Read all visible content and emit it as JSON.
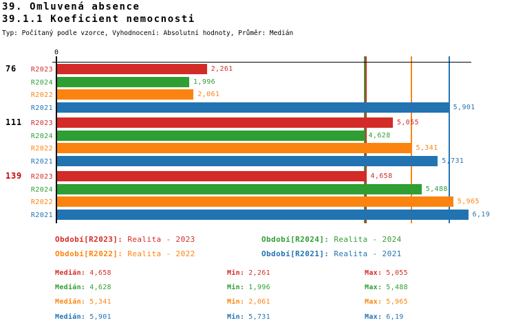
{
  "header": {
    "title_line1": "39. Omluvená absence",
    "title_line2": "39.1.1 Koeficient nemocnosti",
    "subtitle": "Typ: Počítaný podle vzorce, Vyhodnocení: Absolutní hodnoty, Průměr: Medián"
  },
  "palette": {
    "R2023": "#d32b28",
    "R2024": "#2f9e33",
    "R2022": "#fb8410",
    "R2021": "#2273b2",
    "alert_red": "#cc0000",
    "axis_black": "#000000"
  },
  "chart_data": {
    "type": "bar",
    "orientation": "horizontal",
    "grid": "off",
    "x_axis": {
      "zero_label": "0",
      "min": 0,
      "max": 6.3
    },
    "series": [
      {
        "id": "R2023",
        "label": "R2023"
      },
      {
        "id": "R2024",
        "label": "R2024"
      },
      {
        "id": "R2022",
        "label": "R2022"
      },
      {
        "id": "R2021",
        "label": "R2021"
      }
    ],
    "groups": [
      {
        "label": "76",
        "label_color": "black",
        "bars": [
          {
            "series": "R2023",
            "value": 2.261,
            "display": "2,261"
          },
          {
            "series": "R2024",
            "value": 1.996,
            "display": "1,996"
          },
          {
            "series": "R2022",
            "value": 2.061,
            "display": "2,061"
          },
          {
            "series": "R2021",
            "value": 5.901,
            "display": "5,901"
          }
        ]
      },
      {
        "label": "111",
        "label_color": "black",
        "bars": [
          {
            "series": "R2023",
            "value": 5.055,
            "display": "5,055"
          },
          {
            "series": "R2024",
            "value": 4.628,
            "display": "4,628"
          },
          {
            "series": "R2022",
            "value": 5.341,
            "display": "5,341"
          },
          {
            "series": "R2021",
            "value": 5.731,
            "display": "5,731"
          }
        ]
      },
      {
        "label": "139",
        "label_color": "red",
        "bars": [
          {
            "series": "R2023",
            "value": 4.658,
            "display": "4,658"
          },
          {
            "series": "R2024",
            "value": 5.488,
            "display": "5,488"
          },
          {
            "series": "R2022",
            "value": 5.965,
            "display": "5,965"
          },
          {
            "series": "R2021",
            "value": 6.19,
            "display": "6,19"
          }
        ]
      }
    ],
    "median_lines": [
      {
        "series": "R2023",
        "value": 4.658
      },
      {
        "series": "R2024",
        "value": 4.628
      },
      {
        "series": "R2022",
        "value": 5.341
      },
      {
        "series": "R2021",
        "value": 5.901
      }
    ]
  },
  "legend": [
    {
      "series": "R2023",
      "label": "Období[R2023]:",
      "text": "Realita - 2023"
    },
    {
      "series": "R2024",
      "label": "Období[R2024]:",
      "text": "Realita - 2024"
    },
    {
      "series": "R2022",
      "label": "Období[R2022]:",
      "text": "Realita - 2022"
    },
    {
      "series": "R2021",
      "label": "Období[R2021]:",
      "text": "Realita - 2021"
    }
  ],
  "stats": [
    {
      "series": "R2023",
      "median_label": "Medián:",
      "median": "4,658",
      "min_label": "Min:",
      "min": "2,261",
      "max_label": "Max:",
      "max": "5,055"
    },
    {
      "series": "R2024",
      "median_label": "Medián:",
      "median": "4,628",
      "min_label": "Min:",
      "min": "1,996",
      "max_label": "Max:",
      "max": "5,488"
    },
    {
      "series": "R2022",
      "median_label": "Medián:",
      "median": "5,341",
      "min_label": "Min:",
      "min": "2,061",
      "max_label": "Max:",
      "max": "5,965"
    },
    {
      "series": "R2021",
      "median_label": "Medián:",
      "median": "5,901",
      "min_label": "Min:",
      "min": "5,731",
      "max_label": "Max:",
      "max": "6,19"
    }
  ]
}
